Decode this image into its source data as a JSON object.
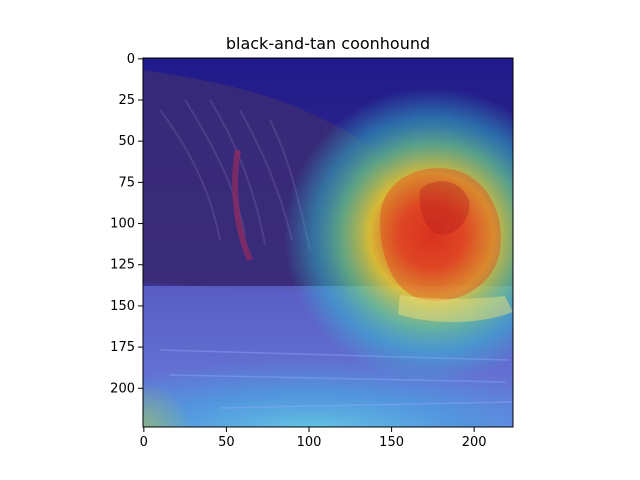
{
  "title": "black-and-tan coonhound",
  "axes": {
    "xlim": [
      0,
      224
    ],
    "ylim": [
      224,
      0
    ],
    "x_ticks": [
      0,
      50,
      100,
      150,
      200
    ],
    "y_ticks": [
      0,
      25,
      50,
      75,
      100,
      125,
      150,
      175,
      200
    ]
  },
  "image": {
    "description_shown": "photo of a sleeping dog with a Grad-CAM style heatmap overlay",
    "heatmap_peak": {
      "x": 170,
      "y": 110
    },
    "colormap": "jet"
  },
  "colors": {
    "heat_low": "#2a1fa8",
    "heat_mid": "#2fd6d0",
    "heat_high_yellow": "#f6e21a",
    "heat_high_red": "#e53a1e",
    "axis": "#000000"
  }
}
